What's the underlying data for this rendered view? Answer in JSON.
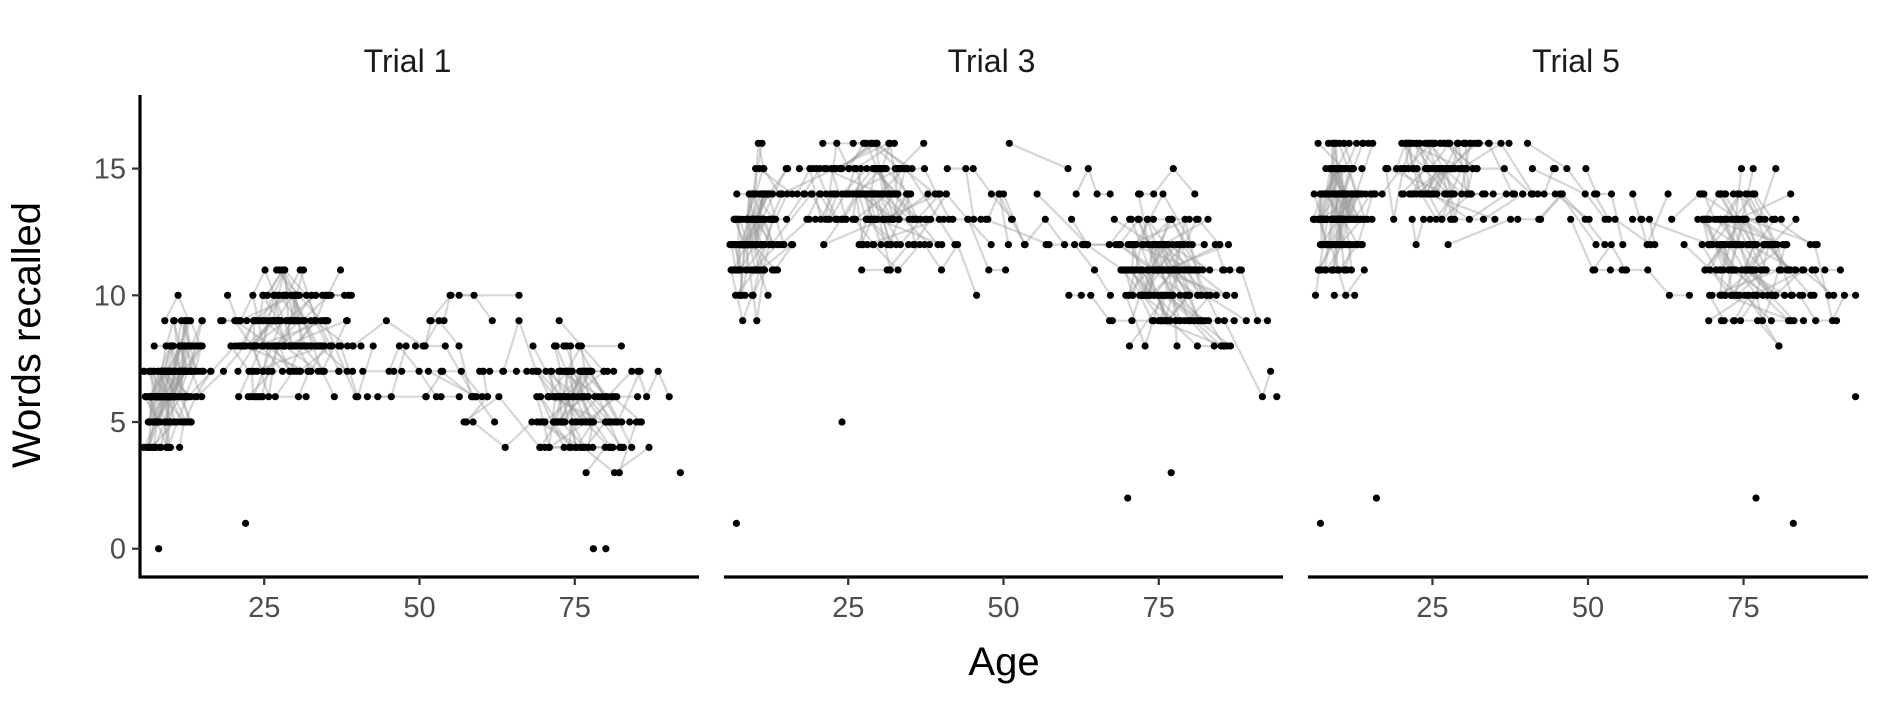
{
  "figure": {
    "xlabel": "Age",
    "ylabel": "Words recalled",
    "xticks": [
      25,
      50,
      75
    ],
    "yticks": [
      0,
      5,
      10,
      15
    ]
  },
  "chart_data": {
    "type": "scatter",
    "subtype": "spaghetti-facets",
    "xlabel": "Age",
    "ylabel": "Words recalled",
    "xlim": [
      5,
      95
    ],
    "ylim": [
      0,
      16
    ],
    "grid": false,
    "legend": "none",
    "colors": {
      "points": "#000000",
      "lines": "#9e9e9e",
      "axis": "#000000",
      "tick_text": "#4d4d4d"
    },
    "facets": [
      {
        "title": "Trial 1",
        "cohort_means": [
          [
            7,
            6
          ],
          [
            22,
            8
          ],
          [
            28,
            9
          ],
          [
            72,
            6
          ]
        ],
        "y_range": [
          0,
          16
        ],
        "outliers": [
          [
            8,
            0
          ],
          [
            22,
            1
          ],
          [
            78,
            0
          ],
          [
            80,
            0
          ],
          [
            92,
            3
          ]
        ]
      },
      {
        "title": "Trial 3",
        "cohort_means": [
          [
            7,
            12
          ],
          [
            22,
            14
          ],
          [
            28,
            14
          ],
          [
            72,
            11
          ]
        ],
        "y_range": [
          1,
          16
        ],
        "outliers": [
          [
            7,
            1
          ],
          [
            24,
            5
          ],
          [
            70,
            2
          ],
          [
            77,
            3
          ],
          [
            94,
            6
          ]
        ]
      },
      {
        "title": "Trial 5",
        "cohort_means": [
          [
            7,
            13
          ],
          [
            22,
            15
          ],
          [
            28,
            15
          ],
          [
            72,
            12
          ]
        ],
        "y_range": [
          1,
          16
        ],
        "outliers": [
          [
            7,
            1
          ],
          [
            16,
            2
          ],
          [
            77,
            2
          ],
          [
            83,
            1
          ],
          [
            93,
            6
          ]
        ]
      }
    ]
  }
}
